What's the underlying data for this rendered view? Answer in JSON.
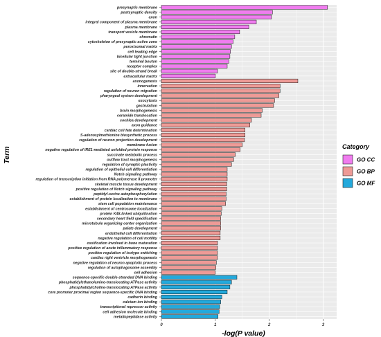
{
  "chart_data": {
    "type": "bar",
    "orientation": "horizontal",
    "xlabel": "-log(P value)",
    "ylabel": "Term",
    "xlim": [
      0,
      3.25
    ],
    "xticks": [
      0,
      1,
      2,
      3
    ],
    "grid": true,
    "legend": {
      "title": "Category",
      "placement": "right",
      "entries": [
        {
          "name": "GO CC",
          "color": "#f07cef"
        },
        {
          "name": "GO BP",
          "color": "#ee9a96"
        },
        {
          "name": "GO MF",
          "color": "#23a9dc"
        }
      ]
    },
    "bar_stroke": "#222222",
    "bars": [
      {
        "term": "presynaptic membrane",
        "value": 3.08,
        "category": "GO CC"
      },
      {
        "term": "postsynaptic density",
        "value": 2.06,
        "category": "GO CC"
      },
      {
        "term": "axon",
        "value": 2.04,
        "category": "GO CC"
      },
      {
        "term": "integral component of plasma membrane",
        "value": 1.76,
        "category": "GO CC"
      },
      {
        "term": "plasma membrane",
        "value": 1.62,
        "category": "GO CC"
      },
      {
        "term": "transport vesicle membrane",
        "value": 1.45,
        "category": "GO CC"
      },
      {
        "term": "chromatin",
        "value": 1.36,
        "category": "GO CC"
      },
      {
        "term": "cytoskeleton of presynaptic active zone",
        "value": 1.33,
        "category": "GO CC"
      },
      {
        "term": "peroxisomal matrix",
        "value": 1.3,
        "category": "GO CC"
      },
      {
        "term": "cell leading edge",
        "value": 1.28,
        "category": "GO CC"
      },
      {
        "term": "bicellular tight junction",
        "value": 1.27,
        "category": "GO CC"
      },
      {
        "term": "terminal bouton",
        "value": 1.25,
        "category": "GO CC"
      },
      {
        "term": "receptor complex",
        "value": 1.22,
        "category": "GO CC"
      },
      {
        "term": "site of double-strand break",
        "value": 1.04,
        "category": "GO CC"
      },
      {
        "term": "extracellular matrix",
        "value": 1.0,
        "category": "GO CC"
      },
      {
        "term": "axonogenesis",
        "value": 2.53,
        "category": "GO BP"
      },
      {
        "term": "innervation",
        "value": 2.2,
        "category": "GO BP"
      },
      {
        "term": "regulation of neuron migration",
        "value": 2.2,
        "category": "GO BP"
      },
      {
        "term": "pharyngeal system development",
        "value": 2.18,
        "category": "GO BP"
      },
      {
        "term": "exocytosis",
        "value": 2.1,
        "category": "GO BP"
      },
      {
        "term": "gastrulation",
        "value": 2.08,
        "category": "GO BP"
      },
      {
        "term": "brain morphogenesis",
        "value": 1.87,
        "category": "GO BP"
      },
      {
        "term": "ceramide translocation",
        "value": 1.85,
        "category": "GO BP"
      },
      {
        "term": "cochlea development",
        "value": 1.67,
        "category": "GO BP"
      },
      {
        "term": "axon guidance",
        "value": 1.64,
        "category": "GO BP"
      },
      {
        "term": "cardiac cell fate determination",
        "value": 1.55,
        "category": "GO BP"
      },
      {
        "term": "S-adenosylmethionine biosynthetic process",
        "value": 1.55,
        "category": "GO BP"
      },
      {
        "term": "regulation of neuron projection development",
        "value": 1.54,
        "category": "GO BP"
      },
      {
        "term": "membrane fusion",
        "value": 1.5,
        "category": "GO BP"
      },
      {
        "term": "negative regulation of IRE1-mediated unfolded protein response",
        "value": 1.46,
        "category": "GO BP"
      },
      {
        "term": "succinate metabolic process",
        "value": 1.37,
        "category": "GO BP"
      },
      {
        "term": "outflow tract morphogenesis",
        "value": 1.34,
        "category": "GO BP"
      },
      {
        "term": "regulation of synaptic plasticity",
        "value": 1.3,
        "category": "GO BP"
      },
      {
        "term": "regulation of epithelial cell differentiation",
        "value": 1.22,
        "category": "GO BP"
      },
      {
        "term": "Notch signaling pathway",
        "value": 1.22,
        "category": "GO BP"
      },
      {
        "term": "regulation of transcription initiation from RNA polymerase II promoter",
        "value": 1.22,
        "category": "GO BP"
      },
      {
        "term": "skeletal muscle tissue development",
        "value": 1.21,
        "category": "GO BP"
      },
      {
        "term": "positive regulation of Notch signaling pathway",
        "value": 1.21,
        "category": "GO BP"
      },
      {
        "term": "peptidyl-serine autophosphorylation",
        "value": 1.2,
        "category": "GO BP"
      },
      {
        "term": "establishment of protein localization to membrane",
        "value": 1.2,
        "category": "GO BP"
      },
      {
        "term": "stem cell population maintenance",
        "value": 1.19,
        "category": "GO BP"
      },
      {
        "term": "establishment of centrosome localization",
        "value": 1.12,
        "category": "GO BP"
      },
      {
        "term": "protein K48-linked ubiquitination",
        "value": 1.11,
        "category": "GO BP"
      },
      {
        "term": "secondary heart field specification",
        "value": 1.1,
        "category": "GO BP"
      },
      {
        "term": "microtubule organizing center organization",
        "value": 1.1,
        "category": "GO BP"
      },
      {
        "term": "palate development",
        "value": 1.1,
        "category": "GO BP"
      },
      {
        "term": "endothelial cell differentiation",
        "value": 1.09,
        "category": "GO BP"
      },
      {
        "term": "negative regulation of cell motility",
        "value": 1.09,
        "category": "GO BP"
      },
      {
        "term": "ossification involved in bone maturation",
        "value": 1.04,
        "category": "GO BP"
      },
      {
        "term": "positive regulation of acute inflammatory response",
        "value": 1.04,
        "category": "GO BP"
      },
      {
        "term": "positive regulation of isotype switching",
        "value": 1.04,
        "category": "GO BP"
      },
      {
        "term": "cardiac right ventricle morphogenesis",
        "value": 1.04,
        "category": "GO BP"
      },
      {
        "term": "negative regulation of neuron apoptotic process",
        "value": 1.02,
        "category": "GO BP"
      },
      {
        "term": "regulation of autophagosome assembly",
        "value": 1.01,
        "category": "GO BP"
      },
      {
        "term": "cell adhesion",
        "value": 1.0,
        "category": "GO BP"
      },
      {
        "term": "sequence-specific double-stranded DNA binding",
        "value": 1.4,
        "category": "GO MF"
      },
      {
        "term": "phosphatidylethanolamine-translocating ATPase activity",
        "value": 1.3,
        "category": "GO MF"
      },
      {
        "term": "phosphatidylcholine-translocating ATPase activity",
        "value": 1.27,
        "category": "GO MF"
      },
      {
        "term": "core promoter proximal region sequence-specific DNA binding",
        "value": 1.22,
        "category": "GO MF"
      },
      {
        "term": "cadherin binding",
        "value": 1.12,
        "category": "GO MF"
      },
      {
        "term": "calcium ion binding",
        "value": 1.1,
        "category": "GO MF"
      },
      {
        "term": "transcriptional repressor activity",
        "value": 1.08,
        "category": "GO MF"
      },
      {
        "term": "cell adhesion molecule binding",
        "value": 1.07,
        "category": "GO MF"
      },
      {
        "term": "metallopeptidase activity",
        "value": 1.05,
        "category": "GO MF"
      }
    ]
  }
}
